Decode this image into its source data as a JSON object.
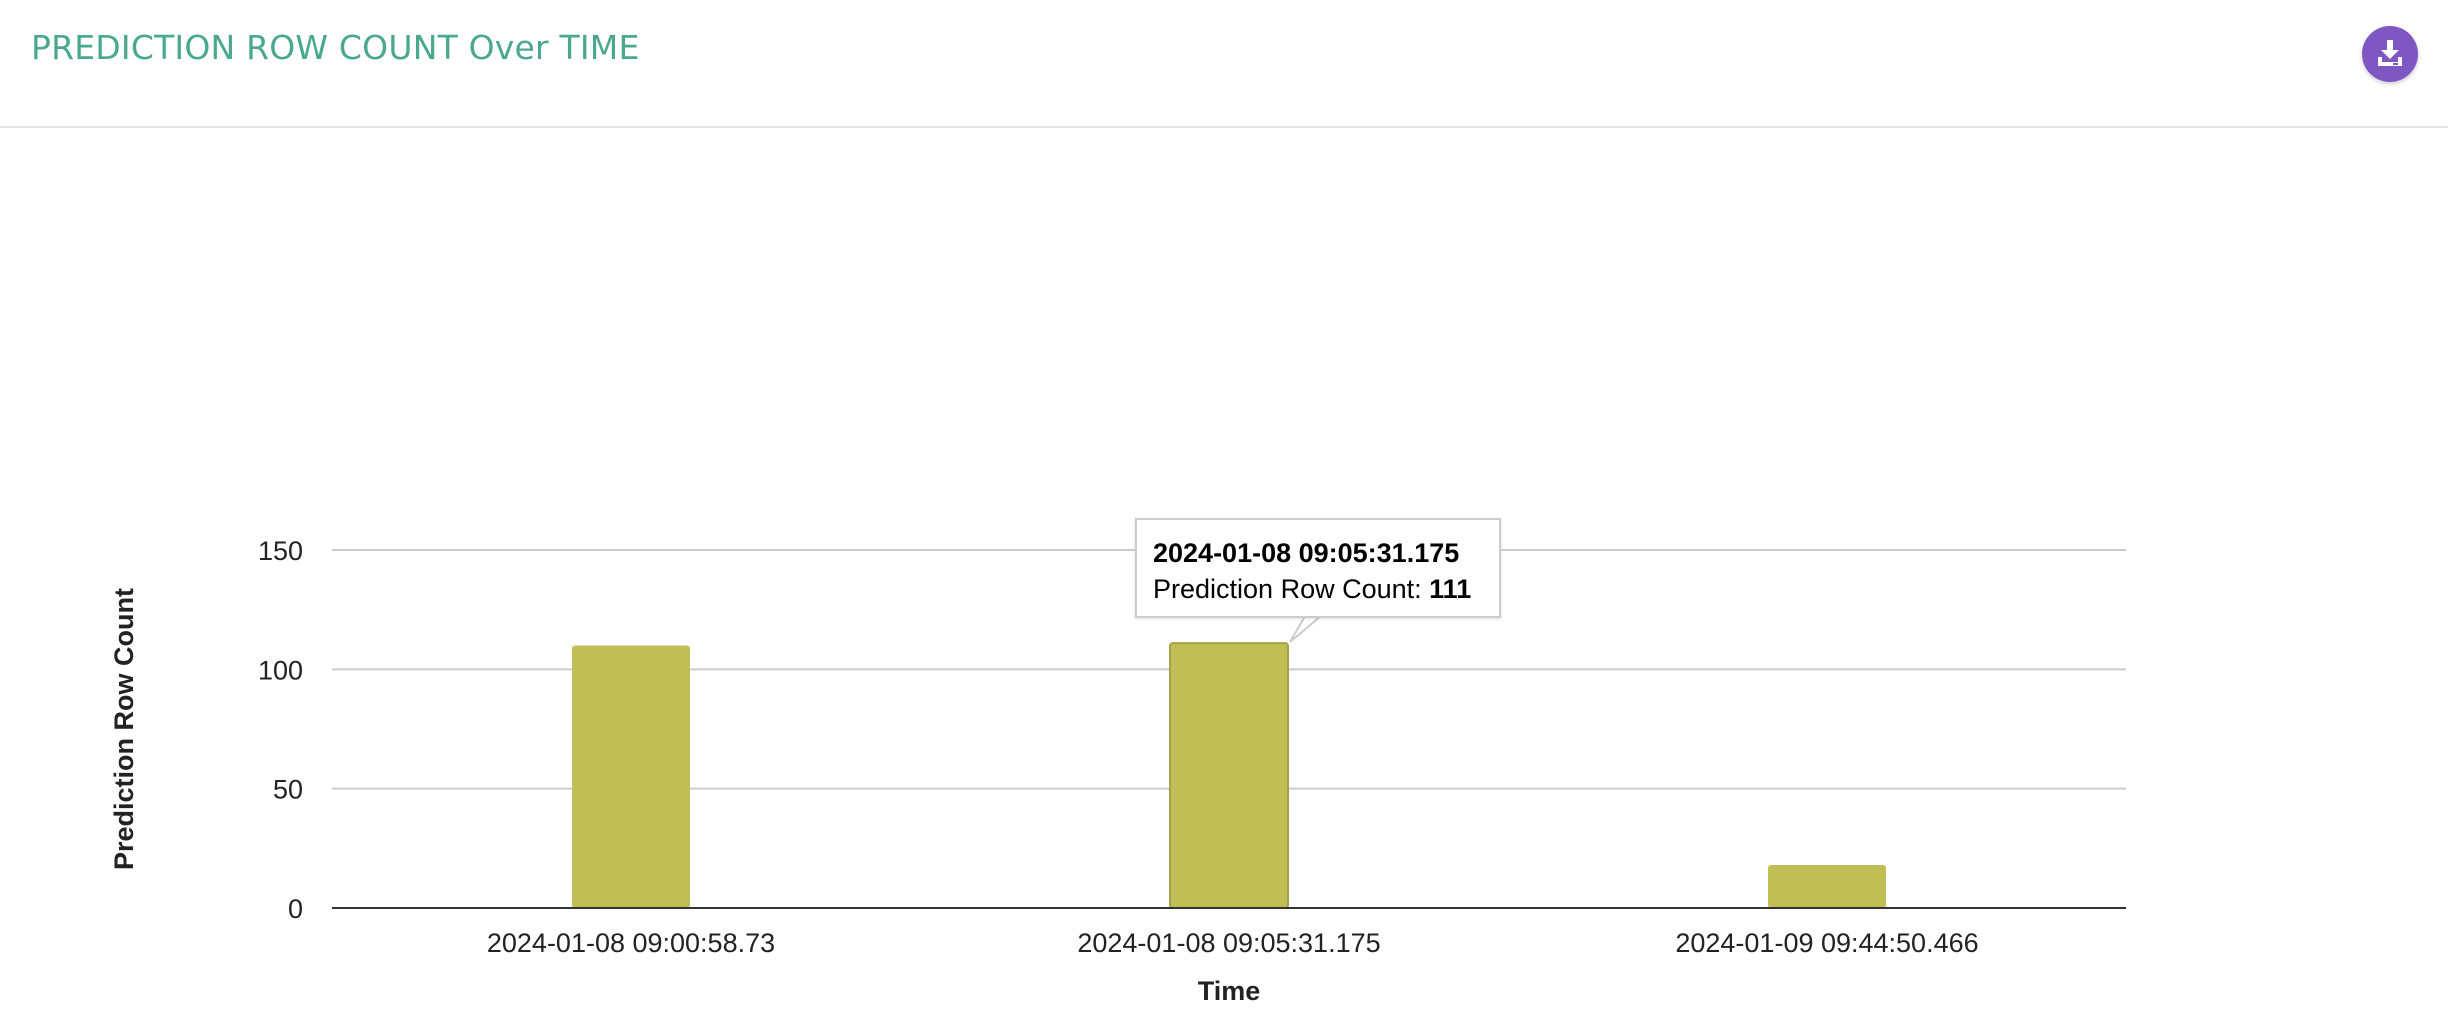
{
  "header": {
    "title": "PREDICTION ROW COUNT Over TIME",
    "download_icon": "download-icon"
  },
  "colors": {
    "title": "#4aa88f",
    "bar": "#c0bf56",
    "download_button": "#7e57c2",
    "gridline": "#cccccc",
    "axis": "#333333"
  },
  "chart_data": {
    "type": "bar",
    "title": "",
    "categories": [
      "2024-01-08 09:00:58.73",
      "2024-01-08 09:05:31.175",
      "2024-01-09 09:44:50.466"
    ],
    "series": [
      {
        "name": "Prediction Row Count",
        "values": [
          110,
          111,
          18
        ]
      }
    ],
    "xlabel": "Time",
    "ylabel": "Prediction Row Count",
    "ylim": [
      0,
      150
    ],
    "yticks": [
      0,
      50,
      100,
      150
    ],
    "grid": true,
    "legend": "none"
  },
  "tooltip": {
    "category": "2024-01-08 09:05:31.175",
    "label": "Prediction Row Count:",
    "value": "111"
  }
}
